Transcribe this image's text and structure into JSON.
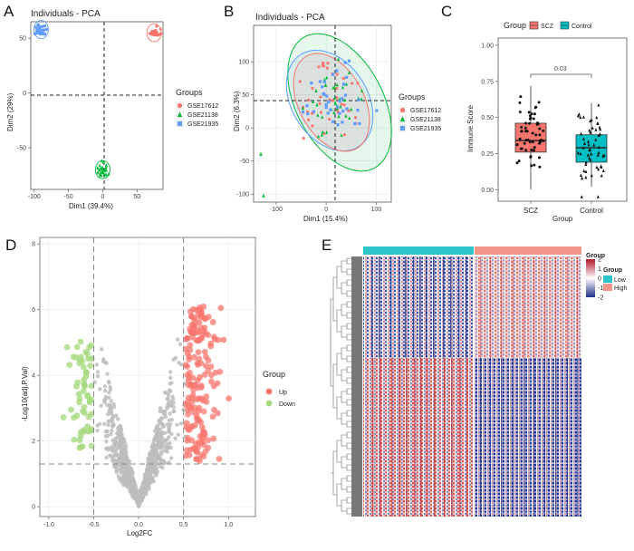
{
  "panels": {
    "A": {
      "label": "A",
      "chart_data": {
        "type": "scatter",
        "title": "Individuals - PCA",
        "xlabel": "Dim1 (39.4%)",
        "ylabel": "Dim2 (29%)",
        "xticks": [
          "-100",
          "-50",
          "0",
          "50"
        ],
        "yticks": [
          "50",
          "0",
          "-50"
        ],
        "xlim": [
          -105,
          88
        ],
        "ylim": [
          -88,
          65
        ],
        "legend_title": "Groups",
        "legend_position": "right",
        "series": [
          {
            "name": "GSE17612",
            "marker": "circle",
            "color": "#F8766D",
            "center": [
              75,
              55
            ]
          },
          {
            "name": "GSE21138",
            "marker": "triangle",
            "color": "#00BA38",
            "center": [
              0,
              -70
            ]
          },
          {
            "name": "GSE21935",
            "marker": "square",
            "color": "#619CFF",
            "center": [
              -90,
              58
            ]
          }
        ]
      }
    },
    "B": {
      "label": "B",
      "chart_data": {
        "type": "scatter",
        "title": "Individuals - PCA",
        "xlabel": "Dim1 (15.4%)",
        "ylabel": "Dim2 (6.3%)",
        "xticks": [
          "-100",
          "0",
          "100"
        ],
        "yticks": [
          "100",
          "50",
          "0",
          "-50",
          "-100"
        ],
        "xlim": [
          -145,
          130
        ],
        "ylim": [
          -112,
          155
        ],
        "legend_title": "Groups",
        "legend_position": "right",
        "series": [
          {
            "name": "GSE17612",
            "marker": "circle",
            "color": "#F8766D"
          },
          {
            "name": "GSE21138",
            "marker": "triangle",
            "color": "#00BA38"
          },
          {
            "name": "GSE21935",
            "marker": "square",
            "color": "#619CFF"
          }
        ]
      }
    },
    "C": {
      "label": "C",
      "chart_data": {
        "type": "box",
        "legend_title": "Group",
        "legend_position": "top",
        "xlabel": "Group",
        "ylabel": "Immune Score",
        "categories": [
          "SCZ",
          "Control"
        ],
        "yticks": [
          "1.00",
          "0.75",
          "0.50",
          "0.25",
          "0.00"
        ],
        "ylim": [
          -0.08,
          1.05
        ],
        "pvalue": "0.03",
        "series": [
          {
            "name": "SCZ",
            "color": "#F8766D",
            "min": 0.0,
            "q1": 0.26,
            "median": 0.34,
            "q3": 0.46,
            "max": 0.72
          },
          {
            "name": "Control",
            "color": "#00BFC4",
            "min": 0.02,
            "q1": 0.19,
            "median": 0.29,
            "q3": 0.38,
            "max": 0.6
          }
        ]
      }
    },
    "D": {
      "label": "D",
      "chart_data": {
        "type": "scatter",
        "xlabel": "Log2FC",
        "ylabel": "-Log10(adj.P.Val)",
        "xticks": [
          "-1.0",
          "-0.5",
          "0.0",
          "0.5",
          "1.0"
        ],
        "yticks": [
          "0",
          "2",
          "4",
          "6",
          "8"
        ],
        "xlim": [
          -1.1,
          1.3
        ],
        "ylim": [
          -0.3,
          8.2
        ],
        "thresholds": {
          "log2fc": 0.5,
          "neglog10p": 1.3
        },
        "legend_title": "Group",
        "legend_position": "right",
        "series": [
          {
            "name": "Up",
            "color": "#F8766D"
          },
          {
            "name": "Down",
            "color": "#A7D97F"
          }
        ]
      }
    },
    "E": {
      "label": "E",
      "chart_data": {
        "type": "heatmap",
        "legend_title": "Group",
        "annotation_title": "Group",
        "annotation_levels": [
          {
            "name": "Low",
            "color": "#2EC4C9"
          },
          {
            "name": "High",
            "color": "#F4958A"
          }
        ],
        "color_scale_ticks": [
          "2",
          "1",
          "0",
          "-1",
          "-2"
        ],
        "color_scale": [
          "#B2182B",
          "#FFFFFF",
          "#21318C"
        ]
      }
    }
  }
}
